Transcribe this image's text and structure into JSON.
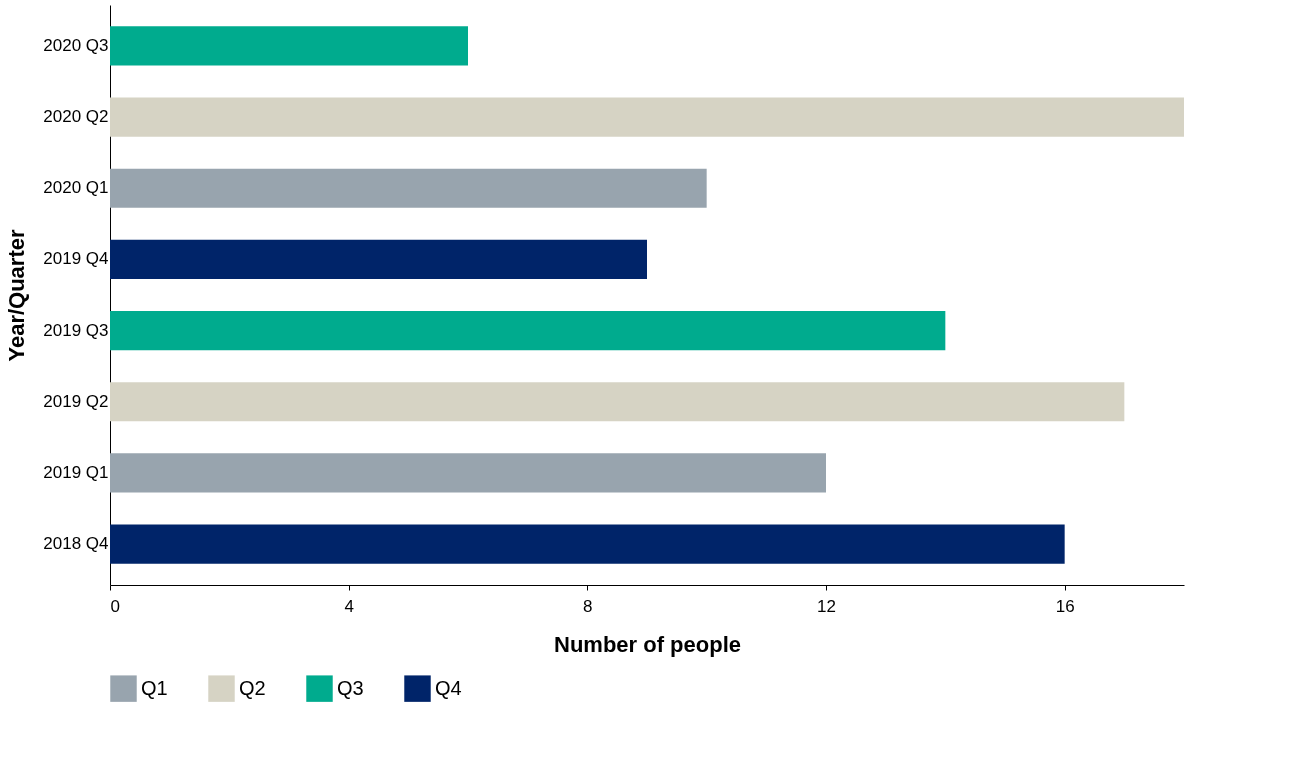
{
  "chart_data": {
    "type": "bar",
    "orientation": "horizontal",
    "xlabel": "Number of people",
    "ylabel": "Year/Quarter",
    "categories": [
      "2020 Q3",
      "2020 Q2",
      "2020 Q1",
      "2019 Q4",
      "2019 Q3",
      "2019 Q2",
      "2019 Q1",
      "2018 Q4"
    ],
    "series": [
      {
        "name": "Q1",
        "color": "#98a4ae",
        "values": [
          null,
          null,
          10,
          null,
          null,
          null,
          12,
          null
        ]
      },
      {
        "name": "Q2",
        "color": "#d6d3c4",
        "values": [
          null,
          18,
          null,
          null,
          null,
          17,
          null,
          null
        ]
      },
      {
        "name": "Q3",
        "color": "#00ab8e",
        "values": [
          6,
          null,
          null,
          null,
          14,
          null,
          null,
          null
        ]
      },
      {
        "name": "Q4",
        "color": "#002469",
        "values": [
          null,
          null,
          null,
          9,
          null,
          null,
          null,
          16
        ]
      }
    ],
    "xlim": [
      0,
      18
    ],
    "xticks": [
      0,
      4,
      8,
      12,
      16
    ],
    "grid": false,
    "legend": "bottom"
  }
}
